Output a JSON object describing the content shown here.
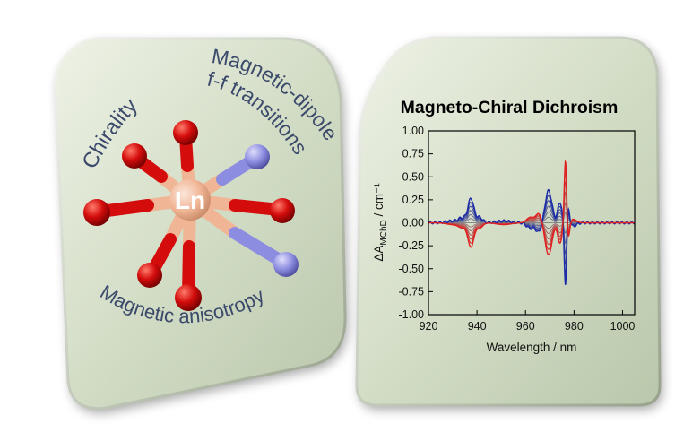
{
  "left_panel": {
    "label_chirality": "Chirality",
    "label_transitions_line1": "Magnetic-dipole",
    "label_transitions_line2": "f-f transitions",
    "label_anisotropy": "Magnetic anisotropy",
    "center_atom": "Ln",
    "colors": {
      "ln": "#f0b595",
      "oxygen": "#d40c0c",
      "nitrogen": "#8c8ce0",
      "text": "#3b4a6b"
    }
  },
  "right_panel": {
    "title": "Magneto-Chiral Dichroism"
  },
  "chart_data": {
    "type": "line",
    "title": "Magneto-Chiral Dichroism",
    "xlabel": "Wavelength / nm",
    "ylabel_prefix": "ΔA",
    "ylabel_sub": "MChD",
    "ylabel_suffix": " / cm⁻¹",
    "xlim": [
      920,
      1005
    ],
    "ylim": [
      -1.0,
      1.0
    ],
    "x_ticks": [
      "920",
      "940",
      "960",
      "980",
      "1000"
    ],
    "y_ticks": [
      "1.00",
      "0.75",
      "0.50",
      "0.25",
      "0.00",
      "-0.25",
      "-0.50",
      "-0.75",
      "-1.00"
    ],
    "series_colors": {
      "positive_field": "#e02020",
      "zero_field": "#888888",
      "negative_field": "#1a2aa8"
    },
    "num_traces": 13,
    "scale_levels": [
      -1.0,
      -0.83,
      -0.67,
      -0.5,
      -0.33,
      -0.17,
      0.0,
      0.17,
      0.33,
      0.5,
      0.67,
      0.83,
      1.0
    ],
    "peaks": [
      {
        "center": 930,
        "width": 2.5,
        "amplitude": -0.02
      },
      {
        "center": 934,
        "width": 1.6,
        "amplitude": -0.05
      },
      {
        "center": 937.5,
        "width": 1.2,
        "amplitude": -0.26
      },
      {
        "center": 941,
        "width": 1.3,
        "amplitude": -0.06
      },
      {
        "center": 951,
        "width": 3.0,
        "amplitude": -0.02
      },
      {
        "center": 962,
        "width": 1.5,
        "amplitude": 0.06
      },
      {
        "center": 965.5,
        "width": 1.2,
        "amplitude": 0.1
      },
      {
        "center": 969.5,
        "width": 1.4,
        "amplitude": -0.35
      },
      {
        "center": 974.2,
        "width": 0.9,
        "amplitude": -0.22
      },
      {
        "center": 976.5,
        "width": 0.55,
        "amplitude": 0.95
      },
      {
        "center": 976.2,
        "width": 0.55,
        "amplitude": -0.1
      },
      {
        "center": 977.2,
        "width": 0.75,
        "amplitude": -0.3
      },
      {
        "center": 979.5,
        "width": 1.4,
        "amplitude": 0.04
      }
    ]
  }
}
